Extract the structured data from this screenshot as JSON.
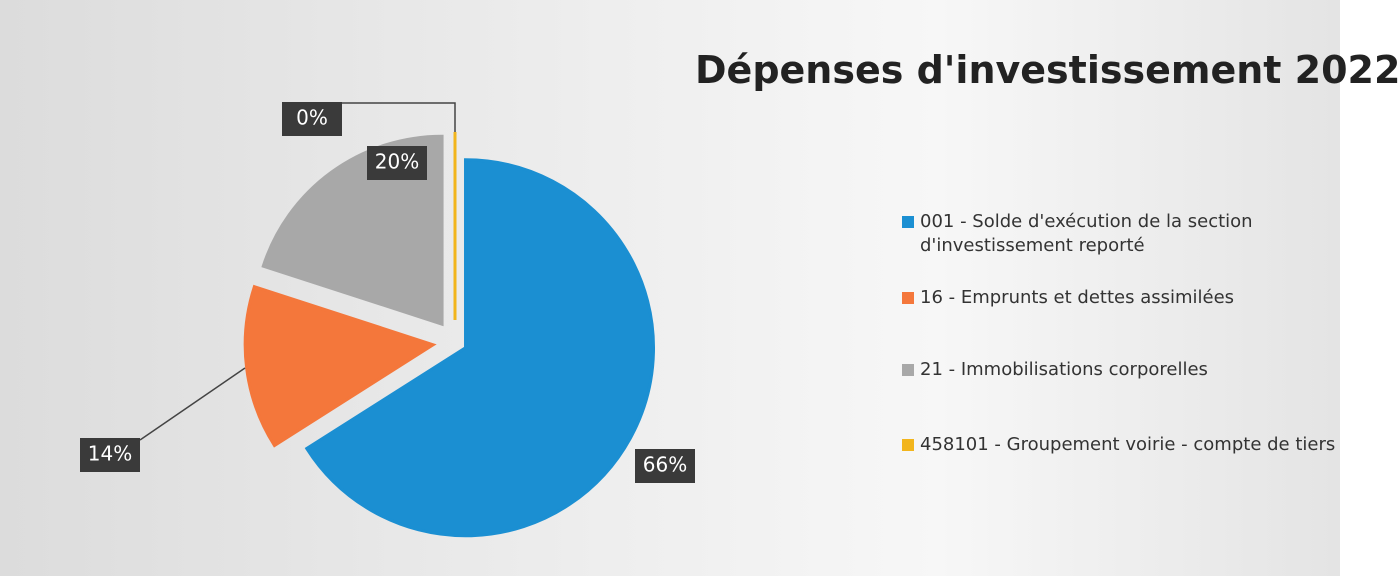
{
  "chart_data": {
    "type": "pie",
    "title": "Dépenses d'investissement 2022",
    "categories": [
      "001 - Solde d'exécution de la section d'investissement reporté",
      "16 - Emprunts et dettes assimilées",
      "21 - Immobilisations corporelles",
      "458101 - Groupement voirie - compte de tiers"
    ],
    "values": [
      66,
      14,
      20,
      0
    ],
    "value_labels": [
      "66%",
      "14%",
      "20%",
      "0%"
    ],
    "colors": [
      "#1b8fd2",
      "#f4773b",
      "#a8a8a8",
      "#f2b51c"
    ],
    "legend": "right"
  }
}
